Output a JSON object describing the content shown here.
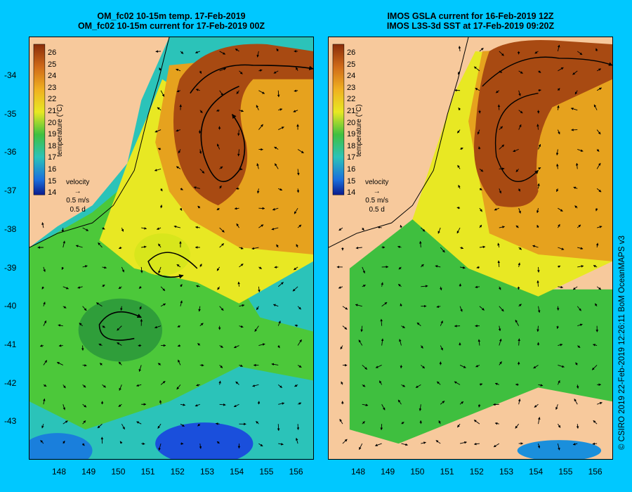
{
  "left_panel": {
    "title_line1": "OM_fc02 10-15m temp. 17-Feb-2019",
    "title_line2": "OM_fc02 10-15m current for 17-Feb-2019 00Z",
    "colorbar_label": "temperature (°C)",
    "velocity_label": "velocity",
    "velocity_scale": "0.5 m/s",
    "velocity_time": "0.5 d"
  },
  "right_panel": {
    "title_line1": "IMOS GSLA current for 16-Feb-2019 12Z",
    "title_line2": "IMOS L3S-3d SST at 17-Feb-2019 09:20Z",
    "colorbar_label": "temperature (°C)",
    "velocity_label": "velocity",
    "velocity_scale": "0.5 m/s",
    "velocity_time": "0.5 d"
  },
  "colorbar_ticks": [
    "26",
    "25",
    "24",
    "23",
    "22",
    "21",
    "20",
    "19",
    "18",
    "17",
    "16",
    "15",
    "14"
  ],
  "lat_labels": [
    "-34",
    "-35",
    "-36",
    "-37",
    "-38",
    "-39",
    "-40",
    "-41",
    "-42",
    "-43"
  ],
  "lon_labels": [
    "148",
    "149",
    "150",
    "151",
    "152",
    "153",
    "154",
    "155",
    "156"
  ],
  "credit": "© CSIRO 2019   22-Feb-2019 12:26:11 BoM OceanMAPS v3",
  "colors": {
    "background": "#00c8ff",
    "land": "#f7c99c",
    "warm": "#a84a12",
    "orange": "#e6a21e",
    "yellow": "#e8e823",
    "green": "#3fbf3f",
    "cyan": "#2bc3b9",
    "blue": "#1a4fdc"
  }
}
